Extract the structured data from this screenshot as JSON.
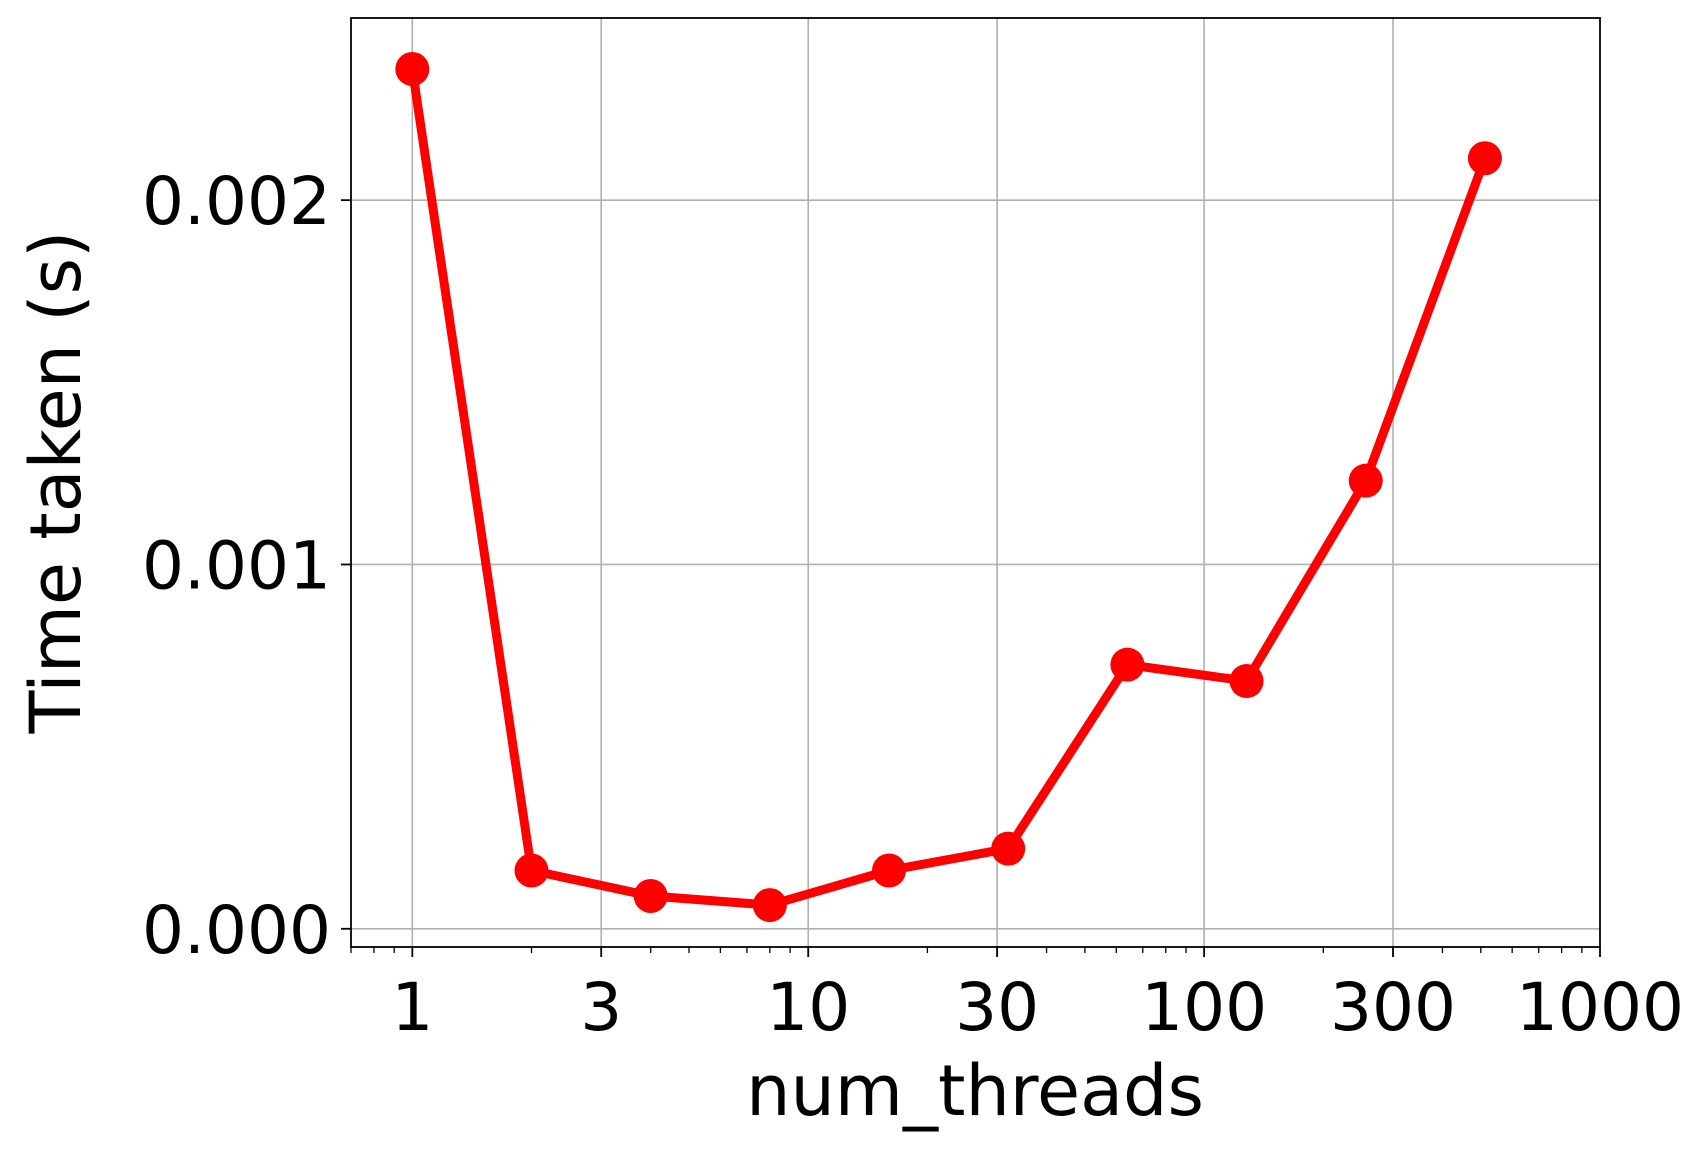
{
  "chart_data": {
    "type": "line",
    "title": "",
    "xlabel": "num_threads",
    "ylabel": "Time taken (s)",
    "x_scale": "log",
    "xlim": [
      0.7,
      1000
    ],
    "ylim": [
      -5e-05,
      0.0025
    ],
    "x_ticks": [
      1,
      3,
      10,
      30,
      100,
      300,
      1000
    ],
    "x_tick_labels": [
      "1",
      "3",
      "10",
      "30",
      "100",
      "300",
      "1000"
    ],
    "y_ticks": [
      0.0,
      0.001,
      0.002
    ],
    "y_tick_labels": [
      "0.000",
      "0.001",
      "0.002"
    ],
    "grid": true,
    "line_color": "#ff0000",
    "marker": "circle",
    "series": [
      {
        "x": [
          1,
          2,
          4,
          8,
          16,
          32,
          64,
          128,
          256,
          512
        ],
        "y": [
          0.00236,
          0.00016,
          9e-05,
          6.5e-05,
          0.00016,
          0.00022,
          0.000725,
          0.00068,
          0.00123,
          0.002115
        ]
      }
    ]
  }
}
